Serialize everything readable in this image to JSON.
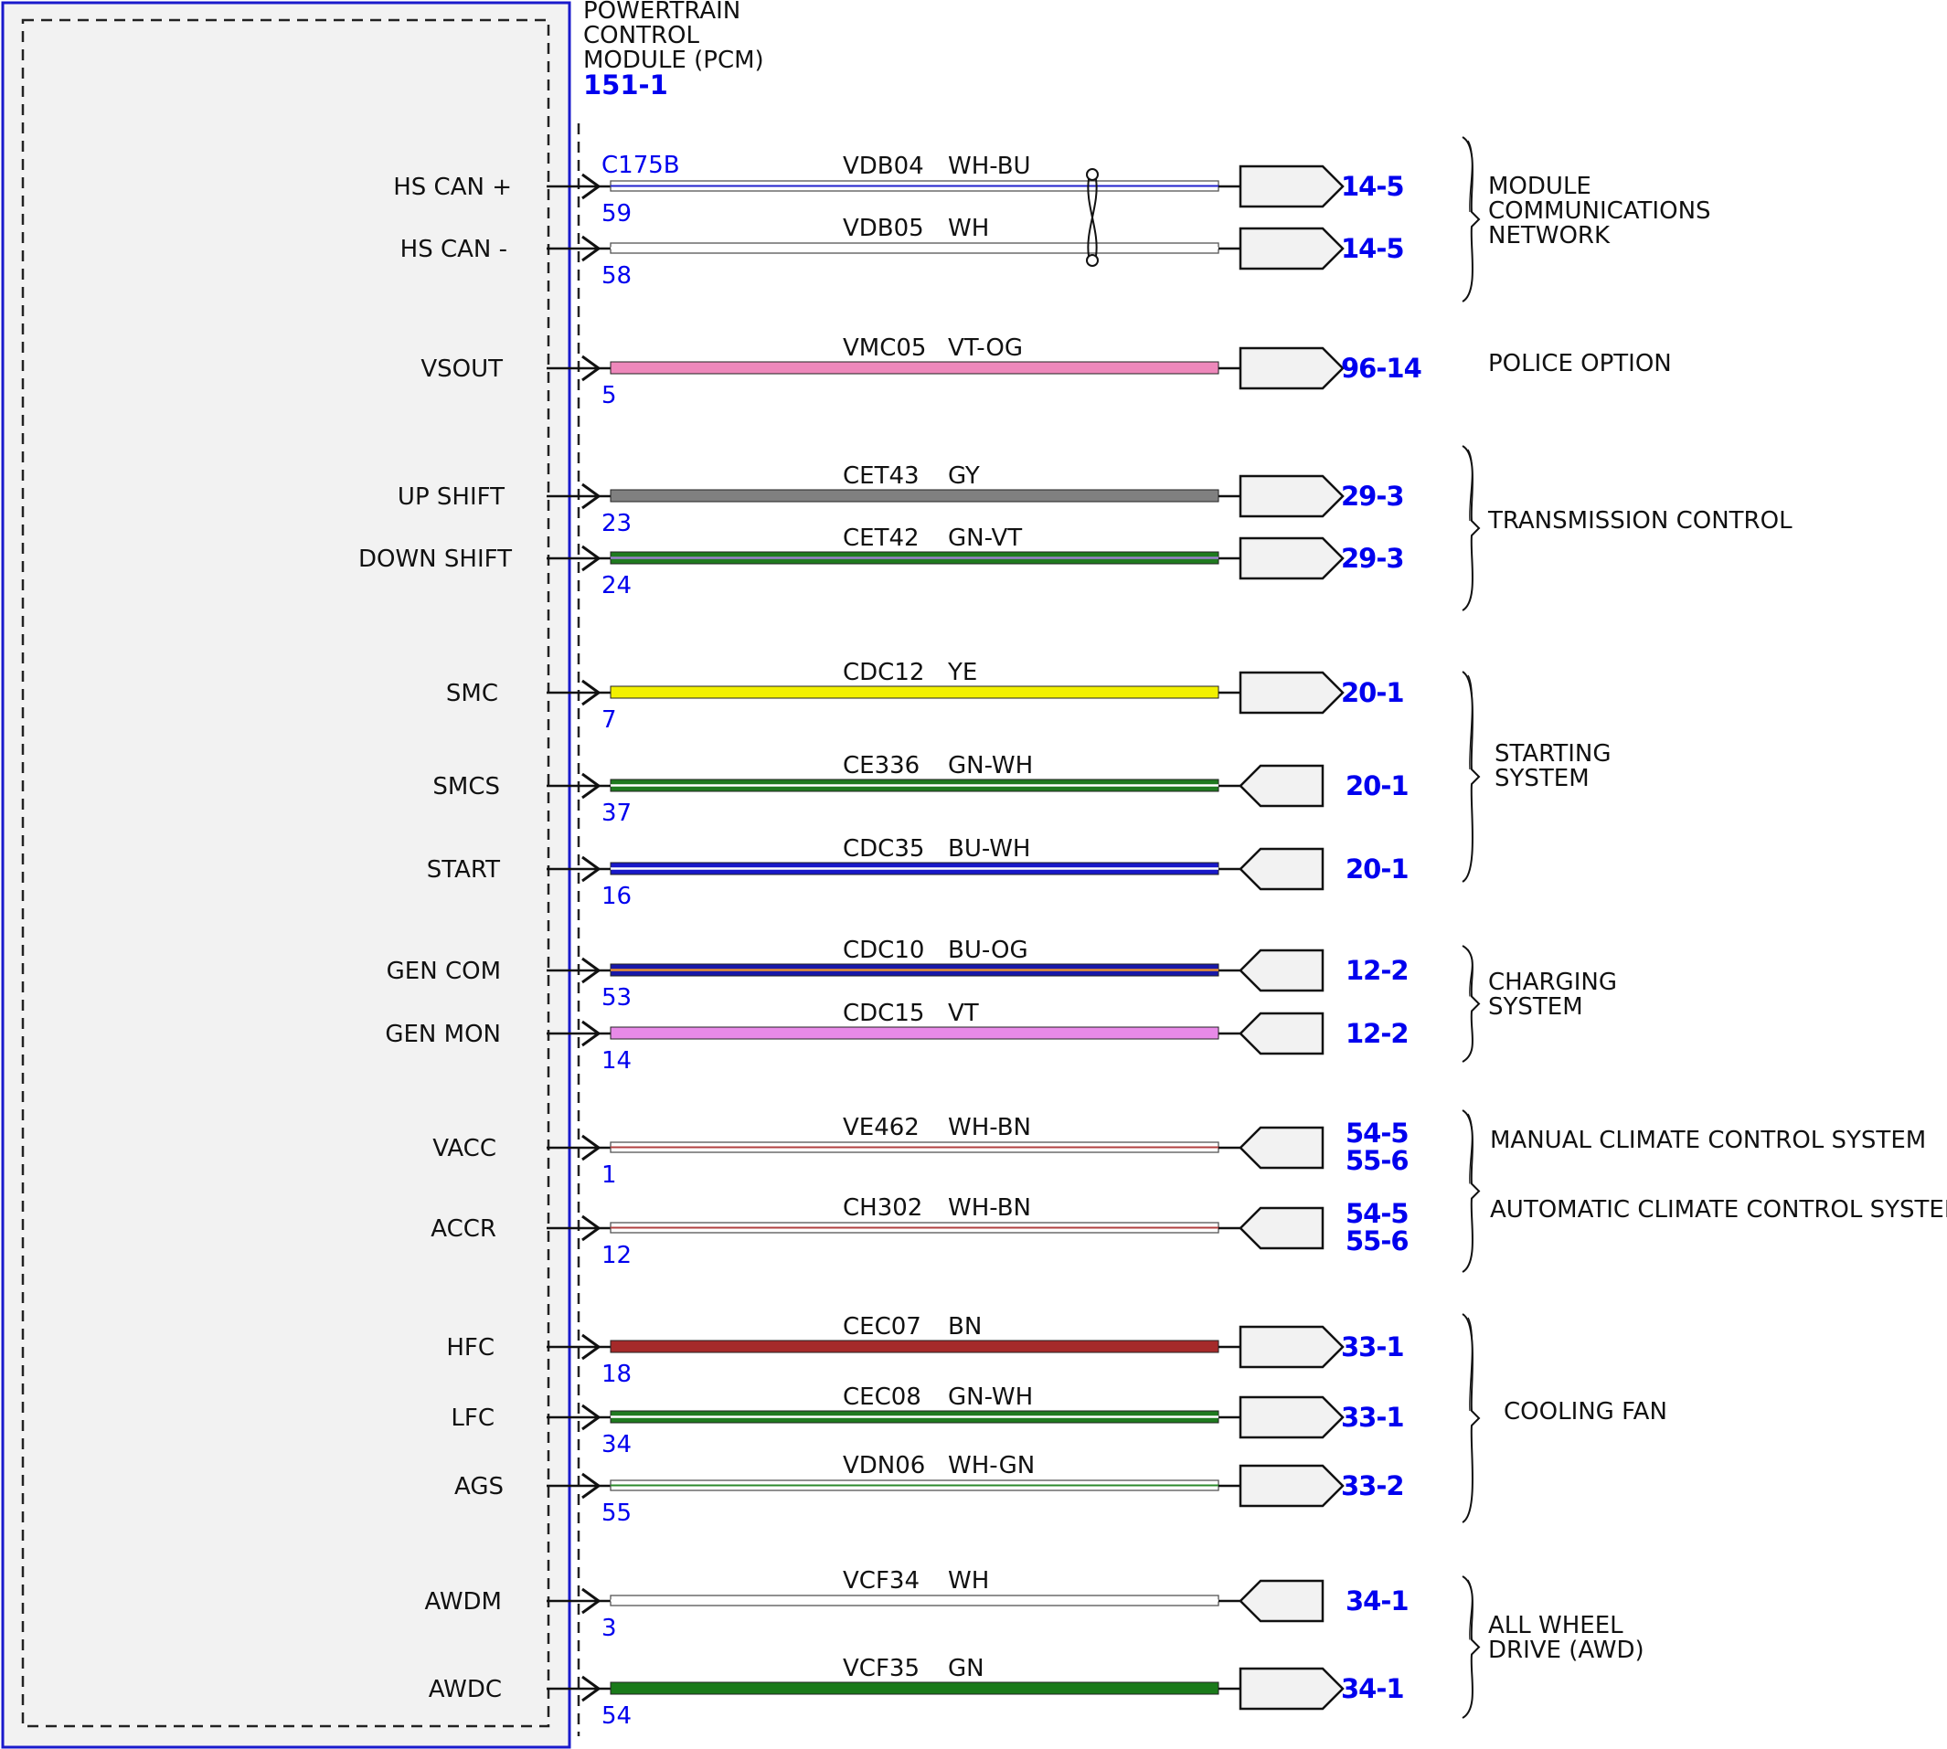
{
  "module": {
    "title_lines": [
      "POWERTRAIN",
      "CONTROL",
      "MODULE (PCM)"
    ],
    "id": "151-1",
    "connector": "C175B",
    "border_color": "#1a1acc"
  },
  "circuits": [
    {
      "signal": "HS CAN +",
      "pin": "59",
      "circuit": "VDB04",
      "color_code": "WH-BU",
      "colors": [
        "#ffffff",
        "#2222cc"
      ],
      "style": "thin",
      "connector_dir": "out",
      "refs": [
        "14-5"
      ],
      "twisted": true
    },
    {
      "signal": "HS CAN -",
      "pin": "58",
      "circuit": "VDB05",
      "color_code": "WH",
      "colors": [
        "#ffffff",
        "#ffffff"
      ],
      "style": "thin",
      "connector_dir": "out",
      "refs": [
        "14-5"
      ],
      "twisted": true
    },
    {
      "signal": "VSOUT",
      "pin": "5",
      "circuit": "VMC05",
      "color_code": "VT-OG",
      "colors": [
        "#ee88bb",
        "#ee88bb"
      ],
      "style": "thick",
      "connector_dir": "out",
      "refs": [
        "96-14"
      ]
    },
    {
      "signal": "UP SHIFT",
      "pin": "23",
      "circuit": "CET43",
      "color_code": "GY",
      "colors": [
        "#808080",
        "#808080"
      ],
      "style": "thick",
      "connector_dir": "out",
      "refs": [
        "29-3"
      ]
    },
    {
      "signal": "DOWN SHIFT",
      "pin": "24",
      "circuit": "CET42",
      "color_code": "GN-VT",
      "colors": [
        "#1f7a1f",
        "#9a7fcc"
      ],
      "style": "stripe",
      "connector_dir": "out",
      "refs": [
        "29-3"
      ]
    },
    {
      "signal": "SMC",
      "pin": "7",
      "circuit": "CDC12",
      "color_code": "YE",
      "colors": [
        "#f2f000",
        "#f2f000"
      ],
      "style": "thick",
      "connector_dir": "out",
      "refs": [
        "20-1"
      ]
    },
    {
      "signal": "SMCS",
      "pin": "37",
      "circuit": "CE336",
      "color_code": "GN-WH",
      "colors": [
        "#1f7a1f",
        "#ffffff"
      ],
      "style": "stripe",
      "connector_dir": "in",
      "refs": [
        "20-1"
      ]
    },
    {
      "signal": "START",
      "pin": "16",
      "circuit": "CDC35",
      "color_code": "BU-WH",
      "colors": [
        "#1818c8",
        "#ffffff"
      ],
      "style": "stripe",
      "connector_dir": "in",
      "refs": [
        "20-1"
      ]
    },
    {
      "signal": "GEN COM",
      "pin": "53",
      "circuit": "CDC10",
      "color_code": "BU-OG",
      "colors": [
        "#1818a8",
        "#e89030"
      ],
      "style": "stripe",
      "connector_dir": "in",
      "refs": [
        "12-2"
      ]
    },
    {
      "signal": "GEN MON",
      "pin": "14",
      "circuit": "CDC15",
      "color_code": "VT",
      "colors": [
        "#e88ae8",
        "#e88ae8"
      ],
      "style": "thick",
      "connector_dir": "in",
      "refs": [
        "12-2"
      ]
    },
    {
      "signal": "VACC",
      "pin": "1",
      "circuit": "VE462",
      "color_code": "WH-BN",
      "colors": [
        "#ffffff",
        "#b04040"
      ],
      "style": "thin",
      "connector_dir": "in",
      "refs": [
        "54-5",
        "55-6"
      ]
    },
    {
      "signal": "ACCR",
      "pin": "12",
      "circuit": "CH302",
      "color_code": "WH-BN",
      "colors": [
        "#ffffff",
        "#b04040"
      ],
      "style": "thin",
      "connector_dir": "in",
      "refs": [
        "54-5",
        "55-6"
      ]
    },
    {
      "signal": "HFC",
      "pin": "18",
      "circuit": "CEC07",
      "color_code": "BN",
      "colors": [
        "#a52a2a",
        "#a52a2a"
      ],
      "style": "thick",
      "connector_dir": "out",
      "refs": [
        "33-1"
      ]
    },
    {
      "signal": "LFC",
      "pin": "34",
      "circuit": "CEC08",
      "color_code": "GN-WH",
      "colors": [
        "#1f7a1f",
        "#ffffff"
      ],
      "style": "stripe",
      "connector_dir": "out",
      "refs": [
        "33-1"
      ]
    },
    {
      "signal": "AGS",
      "pin": "55",
      "circuit": "VDN06",
      "color_code": "WH-GN",
      "colors": [
        "#ffffff",
        "#2a8a2a"
      ],
      "style": "thin",
      "connector_dir": "out",
      "refs": [
        "33-2"
      ]
    },
    {
      "signal": "AWDM",
      "pin": "3",
      "circuit": "VCF34",
      "color_code": "WH",
      "colors": [
        "#ffffff",
        "#ffffff"
      ],
      "style": "thin",
      "connector_dir": "in",
      "refs": [
        "34-1"
      ]
    },
    {
      "signal": "AWDC",
      "pin": "54",
      "circuit": "VCF35",
      "color_code": "GN",
      "colors": [
        "#1a7a1a",
        "#1a7a1a"
      ],
      "style": "thick",
      "connector_dir": "out",
      "refs": [
        "34-1"
      ]
    }
  ],
  "groups": [
    {
      "label_lines": [
        "MODULE",
        "COMMUNICATIONS",
        "NETWORK"
      ],
      "brace": true
    },
    {
      "label_lines": [
        "POLICE OPTION"
      ],
      "brace": false
    },
    {
      "label_lines": [
        "TRANSMISSION CONTROL"
      ],
      "brace": true
    },
    {
      "label_lines": [
        "STARTING",
        "SYSTEM"
      ],
      "brace": true
    },
    {
      "label_lines": [
        "CHARGING",
        "SYSTEM"
      ],
      "brace": true
    },
    {
      "label_lines": [
        "MANUAL CLIMATE CONTROL SYSTEM",
        "AUTOMATIC CLIMATE CONTROL SYSTEM"
      ],
      "brace": true
    },
    {
      "label_lines": [
        "COOLING FAN"
      ],
      "brace": true
    },
    {
      "label_lines": [
        "ALL WHEEL",
        "DRIVE (AWD)"
      ],
      "brace": true
    }
  ]
}
